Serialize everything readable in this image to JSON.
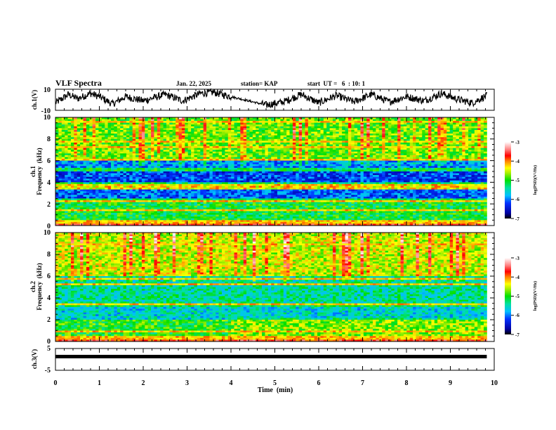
{
  "chart_data": [
    {
      "type": "line",
      "name": "ch1-waveform",
      "title": "VLF Spectra",
      "date": "Jan. 22, 2025",
      "station": "station= KAP",
      "start_ut": "start  UT =   6  : 10: 1",
      "ylabel": "ch.1(V)",
      "ylim": [
        -10,
        10
      ],
      "yticks": [
        "10",
        "-10"
      ],
      "xlim": [
        0,
        10
      ],
      "data_end_min": 9.83,
      "envelope_description_points": {
        "x": [
          0,
          0.3,
          0.5,
          0.8,
          1.0,
          1.3,
          1.6,
          2.0,
          2.5,
          2.9,
          3.3,
          3.6,
          4.0,
          4.4,
          4.8,
          5.2,
          5.6,
          6.0,
          6.4,
          6.8,
          7.2,
          7.6,
          8.0,
          8.4,
          8.8,
          9.2,
          9.5,
          9.83
        ],
        "y": [
          -3,
          5,
          1,
          6,
          3,
          -4,
          3,
          -1,
          5,
          -1,
          6,
          7,
          3,
          -1,
          -5,
          -2,
          5,
          -3,
          4,
          -2,
          5,
          -2,
          3,
          -1,
          6,
          0,
          -3,
          4
        ]
      }
    },
    {
      "type": "heatmap",
      "name": "ch1-spectrogram",
      "ylabel_line1": "ch.1",
      "ylabel_line2": "Frequency  (kHz)",
      "ylim": [
        0,
        10
      ],
      "yticks": [
        "0",
        "2",
        "4",
        "6",
        "8",
        "10"
      ],
      "xlim": [
        0,
        10
      ],
      "colorbar": {
        "label": "log(PSD)(V²/Hz)",
        "range": [
          -7,
          -3
        ],
        "ticks": [
          "-3",
          "-4",
          "-5",
          "-6",
          "-7"
        ]
      },
      "bands_khz": [
        {
          "from": 6.0,
          "to": 10.0,
          "level": -4.8
        },
        {
          "from": 5.3,
          "to": 6.0,
          "level": -5.9
        },
        {
          "from": 4.0,
          "to": 5.0,
          "level": -6.2
        },
        {
          "from": 3.4,
          "to": 3.8,
          "level": -4.3
        },
        {
          "from": 2.5,
          "to": 3.3,
          "level": -6.1
        },
        {
          "from": 0.0,
          "to": 2.3,
          "level": -5.1
        }
      ]
    },
    {
      "type": "heatmap",
      "name": "ch2-spectrogram",
      "ylabel_line1": "ch.2",
      "ylabel_line2": "Frequency  (kHz)",
      "ylim": [
        0,
        10
      ],
      "yticks": [
        "0",
        "2",
        "4",
        "6",
        "8",
        "10"
      ],
      "xlim": [
        0,
        10
      ],
      "colorbar": {
        "label": "log(PSD)(V²/Hz)",
        "range": [
          -7,
          -3
        ],
        "ticks": [
          "-3",
          "-4",
          "-5",
          "-6",
          "-7"
        ]
      },
      "bands_khz": [
        {
          "from": 6.0,
          "to": 10.0,
          "level": -4.5
        },
        {
          "from": 3.3,
          "to": 6.0,
          "level": -5.4
        },
        {
          "from": 2.0,
          "to": 3.1,
          "level": -5.6
        },
        {
          "from": 0.0,
          "to": 2.0,
          "level": -5.0
        }
      ]
    },
    {
      "type": "line",
      "name": "ch3-waveform",
      "ylabel": "ch.3(V)",
      "ylim": [
        -5,
        5
      ],
      "yticks": [
        "5",
        "-5"
      ],
      "xlim": [
        0,
        10
      ],
      "value_v": 1.3,
      "data_end_min": 9.83,
      "xlabel": "Time  (min)",
      "xticks": [
        "0",
        "1",
        "2",
        "3",
        "4",
        "5",
        "6",
        "7",
        "8",
        "9",
        "10"
      ]
    }
  ]
}
